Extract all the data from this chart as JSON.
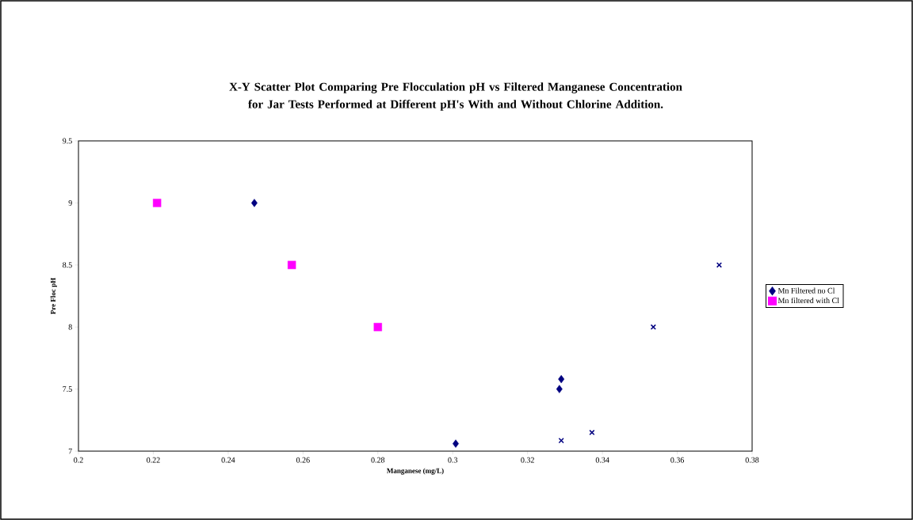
{
  "chart_data": {
    "type": "scatter",
    "title": "X-Y Scatter Plot Comparing Pre Flocculation pH vs Filtered Manganese Concentration for Jar Tests Performed at Different pH's With and Without Chlorine Addition.",
    "xlabel": "Manganese (mg/L)",
    "ylabel": "Pre Floc pH",
    "xlim": [
      0.2,
      0.38
    ],
    "xticks": [
      0.2,
      0.22,
      0.24,
      0.26,
      0.28,
      0.3,
      0.32,
      0.34,
      0.36,
      0.38
    ],
    "ylim": [
      7,
      9.5
    ],
    "yticks": [
      7,
      7.5,
      8,
      8.5,
      9,
      9.5
    ],
    "grid": false,
    "legend": "right",
    "series": [
      {
        "name": "Mn Filtered no Cl",
        "color": "#000080",
        "marker": "diamond",
        "x": [
          0.247,
          0.3008,
          0.3285,
          0.329
        ],
        "values": [
          9,
          7.06,
          7.5,
          7.58
        ]
      },
      {
        "name": "Mn filtered with Cl",
        "color": "#ff00ff",
        "marker": "square",
        "x": [
          0.221,
          0.257,
          0.28
        ],
        "values": [
          9,
          8.5,
          8.0
        ]
      },
      {
        "color": "#000080",
        "marker": "cross",
        "x": [
          0.3712,
          0.3536,
          0.329,
          0.3372
        ],
        "values": [
          8.5,
          8.0,
          7.085,
          7.15
        ]
      }
    ]
  }
}
